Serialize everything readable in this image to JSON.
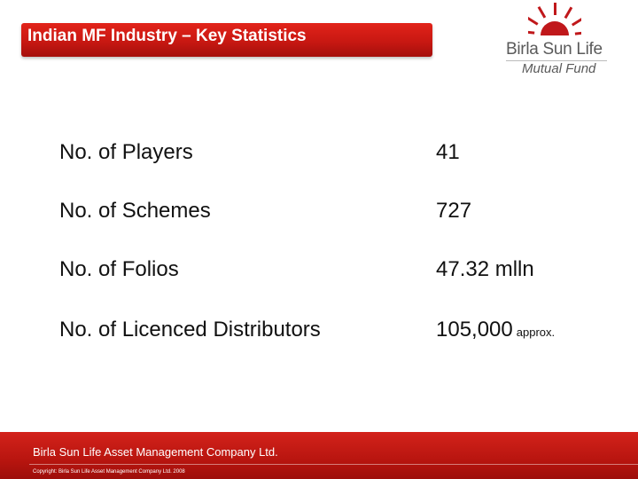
{
  "header": {
    "title": "Indian MF Industry – Key Statistics"
  },
  "logo": {
    "name": "Birla Sun Life",
    "subtitle": "Mutual Fund",
    "color": "#c0181b"
  },
  "stats": [
    {
      "label": "No. of Players",
      "value": "41",
      "suffix": ""
    },
    {
      "label": "No. of Schemes",
      "value": "727",
      "suffix": ""
    },
    {
      "label": "No. of Folios",
      "value": "47.32 mlln",
      "suffix": ""
    },
    {
      "label": "No. of Licenced Distributors",
      "value": "105,000",
      "suffix": "approx."
    }
  ],
  "footer": {
    "company": "Birla Sun Life Asset Management Company Ltd.",
    "copyright": "Copyright: Birla Sun Life Asset Management Company Ltd. 2008"
  },
  "colors": {
    "accent": "#c8181a",
    "text": "#111111"
  }
}
